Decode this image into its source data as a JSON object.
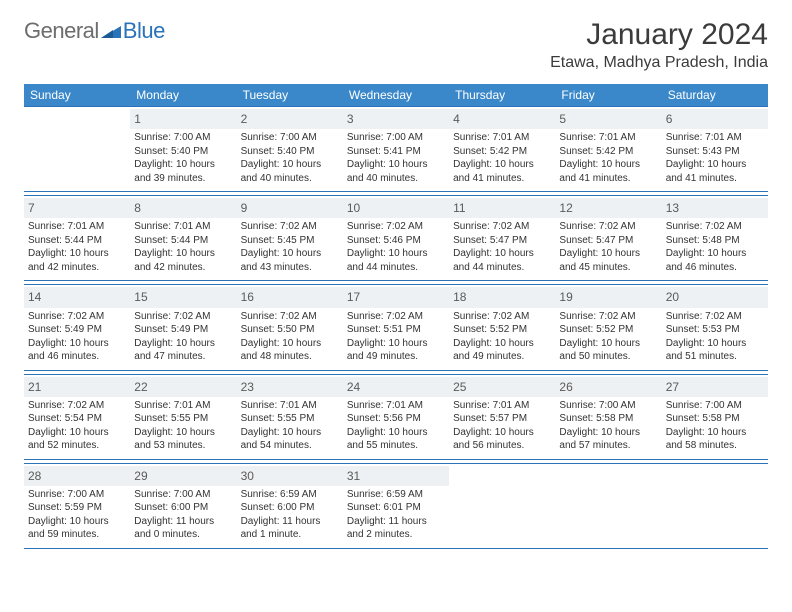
{
  "logo": {
    "text1": "General",
    "text2": "Blue"
  },
  "title": "January 2024",
  "location": "Etawa, Madhya Pradesh, India",
  "header_bg": "#3a88c9",
  "divider_color": "#2a73b8",
  "daynum_bg": "#eef1f3",
  "weekdays": [
    "Sunday",
    "Monday",
    "Tuesday",
    "Wednesday",
    "Thursday",
    "Friday",
    "Saturday"
  ],
  "weeks": [
    [
      {
        "num": "",
        "sr": "",
        "ss": "",
        "dl1": "",
        "dl2": ""
      },
      {
        "num": "1",
        "sr": "Sunrise: 7:00 AM",
        "ss": "Sunset: 5:40 PM",
        "dl1": "Daylight: 10 hours",
        "dl2": "and 39 minutes."
      },
      {
        "num": "2",
        "sr": "Sunrise: 7:00 AM",
        "ss": "Sunset: 5:40 PM",
        "dl1": "Daylight: 10 hours",
        "dl2": "and 40 minutes."
      },
      {
        "num": "3",
        "sr": "Sunrise: 7:00 AM",
        "ss": "Sunset: 5:41 PM",
        "dl1": "Daylight: 10 hours",
        "dl2": "and 40 minutes."
      },
      {
        "num": "4",
        "sr": "Sunrise: 7:01 AM",
        "ss": "Sunset: 5:42 PM",
        "dl1": "Daylight: 10 hours",
        "dl2": "and 41 minutes."
      },
      {
        "num": "5",
        "sr": "Sunrise: 7:01 AM",
        "ss": "Sunset: 5:42 PM",
        "dl1": "Daylight: 10 hours",
        "dl2": "and 41 minutes."
      },
      {
        "num": "6",
        "sr": "Sunrise: 7:01 AM",
        "ss": "Sunset: 5:43 PM",
        "dl1": "Daylight: 10 hours",
        "dl2": "and 41 minutes."
      }
    ],
    [
      {
        "num": "7",
        "sr": "Sunrise: 7:01 AM",
        "ss": "Sunset: 5:44 PM",
        "dl1": "Daylight: 10 hours",
        "dl2": "and 42 minutes."
      },
      {
        "num": "8",
        "sr": "Sunrise: 7:01 AM",
        "ss": "Sunset: 5:44 PM",
        "dl1": "Daylight: 10 hours",
        "dl2": "and 42 minutes."
      },
      {
        "num": "9",
        "sr": "Sunrise: 7:02 AM",
        "ss": "Sunset: 5:45 PM",
        "dl1": "Daylight: 10 hours",
        "dl2": "and 43 minutes."
      },
      {
        "num": "10",
        "sr": "Sunrise: 7:02 AM",
        "ss": "Sunset: 5:46 PM",
        "dl1": "Daylight: 10 hours",
        "dl2": "and 44 minutes."
      },
      {
        "num": "11",
        "sr": "Sunrise: 7:02 AM",
        "ss": "Sunset: 5:47 PM",
        "dl1": "Daylight: 10 hours",
        "dl2": "and 44 minutes."
      },
      {
        "num": "12",
        "sr": "Sunrise: 7:02 AM",
        "ss": "Sunset: 5:47 PM",
        "dl1": "Daylight: 10 hours",
        "dl2": "and 45 minutes."
      },
      {
        "num": "13",
        "sr": "Sunrise: 7:02 AM",
        "ss": "Sunset: 5:48 PM",
        "dl1": "Daylight: 10 hours",
        "dl2": "and 46 minutes."
      }
    ],
    [
      {
        "num": "14",
        "sr": "Sunrise: 7:02 AM",
        "ss": "Sunset: 5:49 PM",
        "dl1": "Daylight: 10 hours",
        "dl2": "and 46 minutes."
      },
      {
        "num": "15",
        "sr": "Sunrise: 7:02 AM",
        "ss": "Sunset: 5:49 PM",
        "dl1": "Daylight: 10 hours",
        "dl2": "and 47 minutes."
      },
      {
        "num": "16",
        "sr": "Sunrise: 7:02 AM",
        "ss": "Sunset: 5:50 PM",
        "dl1": "Daylight: 10 hours",
        "dl2": "and 48 minutes."
      },
      {
        "num": "17",
        "sr": "Sunrise: 7:02 AM",
        "ss": "Sunset: 5:51 PM",
        "dl1": "Daylight: 10 hours",
        "dl2": "and 49 minutes."
      },
      {
        "num": "18",
        "sr": "Sunrise: 7:02 AM",
        "ss": "Sunset: 5:52 PM",
        "dl1": "Daylight: 10 hours",
        "dl2": "and 49 minutes."
      },
      {
        "num": "19",
        "sr": "Sunrise: 7:02 AM",
        "ss": "Sunset: 5:52 PM",
        "dl1": "Daylight: 10 hours",
        "dl2": "and 50 minutes."
      },
      {
        "num": "20",
        "sr": "Sunrise: 7:02 AM",
        "ss": "Sunset: 5:53 PM",
        "dl1": "Daylight: 10 hours",
        "dl2": "and 51 minutes."
      }
    ],
    [
      {
        "num": "21",
        "sr": "Sunrise: 7:02 AM",
        "ss": "Sunset: 5:54 PM",
        "dl1": "Daylight: 10 hours",
        "dl2": "and 52 minutes."
      },
      {
        "num": "22",
        "sr": "Sunrise: 7:01 AM",
        "ss": "Sunset: 5:55 PM",
        "dl1": "Daylight: 10 hours",
        "dl2": "and 53 minutes."
      },
      {
        "num": "23",
        "sr": "Sunrise: 7:01 AM",
        "ss": "Sunset: 5:55 PM",
        "dl1": "Daylight: 10 hours",
        "dl2": "and 54 minutes."
      },
      {
        "num": "24",
        "sr": "Sunrise: 7:01 AM",
        "ss": "Sunset: 5:56 PM",
        "dl1": "Daylight: 10 hours",
        "dl2": "and 55 minutes."
      },
      {
        "num": "25",
        "sr": "Sunrise: 7:01 AM",
        "ss": "Sunset: 5:57 PM",
        "dl1": "Daylight: 10 hours",
        "dl2": "and 56 minutes."
      },
      {
        "num": "26",
        "sr": "Sunrise: 7:00 AM",
        "ss": "Sunset: 5:58 PM",
        "dl1": "Daylight: 10 hours",
        "dl2": "and 57 minutes."
      },
      {
        "num": "27",
        "sr": "Sunrise: 7:00 AM",
        "ss": "Sunset: 5:58 PM",
        "dl1": "Daylight: 10 hours",
        "dl2": "and 58 minutes."
      }
    ],
    [
      {
        "num": "28",
        "sr": "Sunrise: 7:00 AM",
        "ss": "Sunset: 5:59 PM",
        "dl1": "Daylight: 10 hours",
        "dl2": "and 59 minutes."
      },
      {
        "num": "29",
        "sr": "Sunrise: 7:00 AM",
        "ss": "Sunset: 6:00 PM",
        "dl1": "Daylight: 11 hours",
        "dl2": "and 0 minutes."
      },
      {
        "num": "30",
        "sr": "Sunrise: 6:59 AM",
        "ss": "Sunset: 6:00 PM",
        "dl1": "Daylight: 11 hours",
        "dl2": "and 1 minute."
      },
      {
        "num": "31",
        "sr": "Sunrise: 6:59 AM",
        "ss": "Sunset: 6:01 PM",
        "dl1": "Daylight: 11 hours",
        "dl2": "and 2 minutes."
      },
      {
        "num": "",
        "sr": "",
        "ss": "",
        "dl1": "",
        "dl2": ""
      },
      {
        "num": "",
        "sr": "",
        "ss": "",
        "dl1": "",
        "dl2": ""
      },
      {
        "num": "",
        "sr": "",
        "ss": "",
        "dl1": "",
        "dl2": ""
      }
    ]
  ]
}
